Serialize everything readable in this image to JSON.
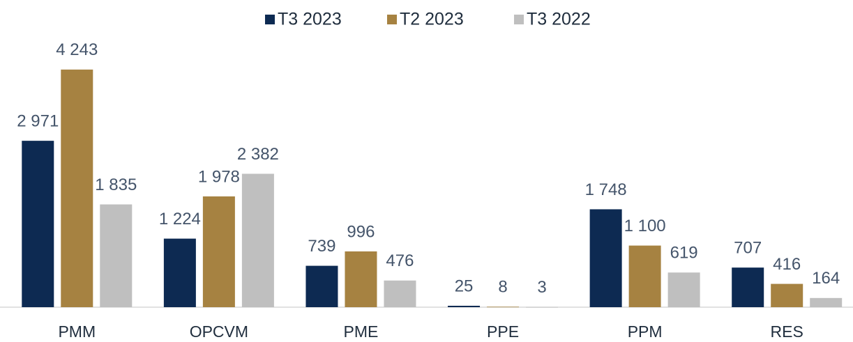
{
  "chart_data": {
    "type": "bar",
    "categories": [
      "PMM",
      "OPCVM",
      "PME",
      "PPE",
      "PPM",
      "RES"
    ],
    "series": [
      {
        "name": "T3 2023",
        "color": "#0d2a52",
        "values": [
          2971,
          1224,
          739,
          25,
          1748,
          707
        ],
        "value_labels": [
          "2 971",
          "1 224",
          "739",
          "25",
          "1 748",
          "707"
        ]
      },
      {
        "name": "T2 2023",
        "color": "#a68241",
        "values": [
          4243,
          1978,
          996,
          8,
          1100,
          416
        ],
        "value_labels": [
          "4 243",
          "1 978",
          "996",
          "8",
          "1 100",
          "416"
        ]
      },
      {
        "name": "T3 2022",
        "color": "#bfbfbf",
        "values": [
          1835,
          2382,
          476,
          3,
          619,
          164
        ],
        "value_labels": [
          "1 835",
          "2 382",
          "476",
          "3",
          "619",
          "164"
        ]
      }
    ],
    "ylim": [
      0,
      5000
    ],
    "legend": "top"
  }
}
